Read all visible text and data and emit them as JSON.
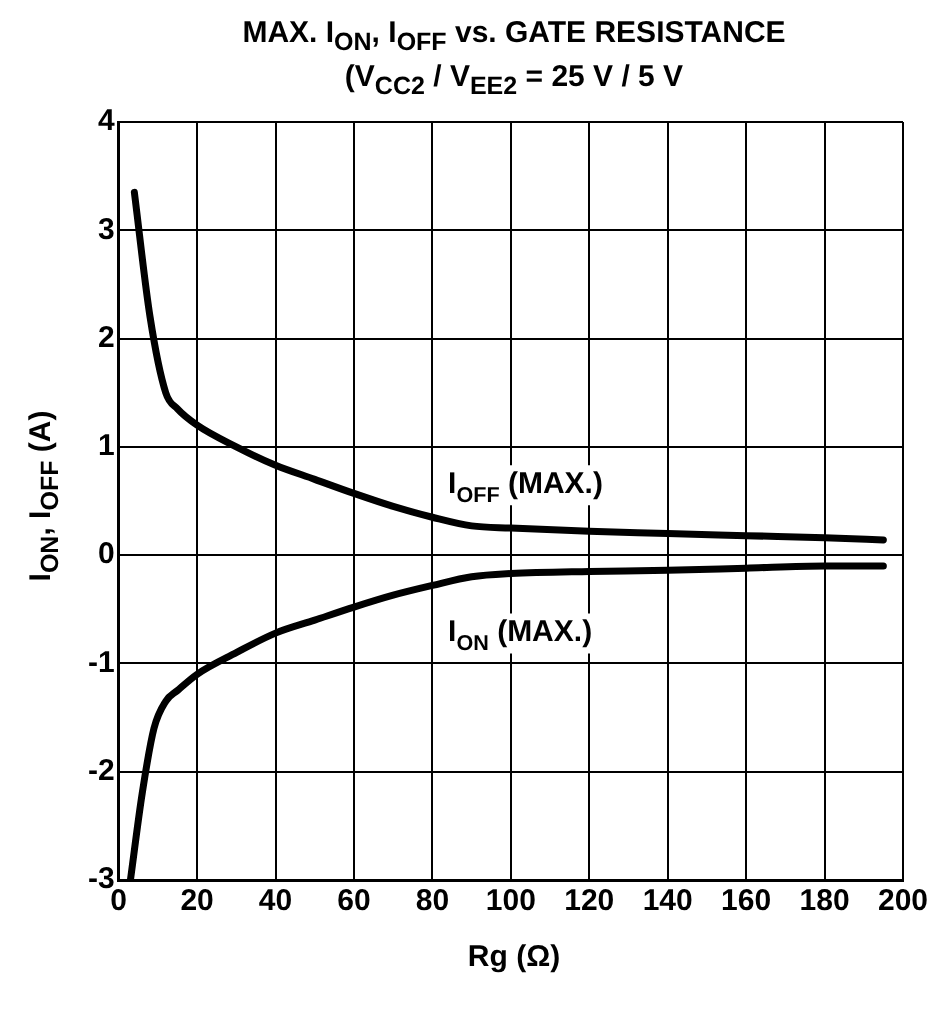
{
  "chart_data": {
    "type": "line",
    "title": "MAX. I$_{ON}$, I$_{OFF}$ vs. GATE RESISTANCE",
    "subtitle": "(V$_{CC2}$ / V$_{EE2}$ = 25 V / 5 V",
    "xlabel": "Rg (Ω)",
    "ylabel": "I$_{ON}$, I$_{OFF}$ (A)",
    "xlim": [
      0,
      200
    ],
    "xticks": [
      0,
      20,
      40,
      60,
      80,
      100,
      120,
      140,
      160,
      180,
      200
    ],
    "ylim": [
      -3,
      4
    ],
    "yticks": [
      -3,
      -2,
      -1,
      0,
      1,
      2,
      3,
      4
    ],
    "grid": true,
    "legend": false,
    "marker": "none",
    "line_style": "solid",
    "series": [
      {
        "name": "I$_{OFF}$ (MAX.)",
        "color": "#000000",
        "x": [
          4,
          8,
          12,
          15,
          20,
          30,
          40,
          50,
          60,
          70,
          80,
          90,
          100,
          120,
          140,
          160,
          180,
          195
        ],
        "values": [
          3.35,
          2.2,
          1.5,
          1.35,
          1.2,
          1.0,
          0.83,
          0.7,
          0.57,
          0.45,
          0.35,
          0.27,
          0.25,
          0.22,
          0.2,
          0.18,
          0.16,
          0.14
        ]
      },
      {
        "name": "I$_{ON}$ (MAX.)",
        "color": "#000000",
        "x": [
          3,
          6,
          9,
          12,
          15,
          20,
          30,
          40,
          50,
          60,
          70,
          80,
          90,
          100,
          120,
          140,
          160,
          180,
          195
        ],
        "values": [
          -3.0,
          -2.2,
          -1.6,
          -1.35,
          -1.25,
          -1.1,
          -0.9,
          -0.72,
          -0.6,
          -0.48,
          -0.37,
          -0.28,
          -0.2,
          -0.17,
          -0.15,
          -0.14,
          -0.12,
          -0.1,
          -0.1
        ]
      }
    ]
  }
}
